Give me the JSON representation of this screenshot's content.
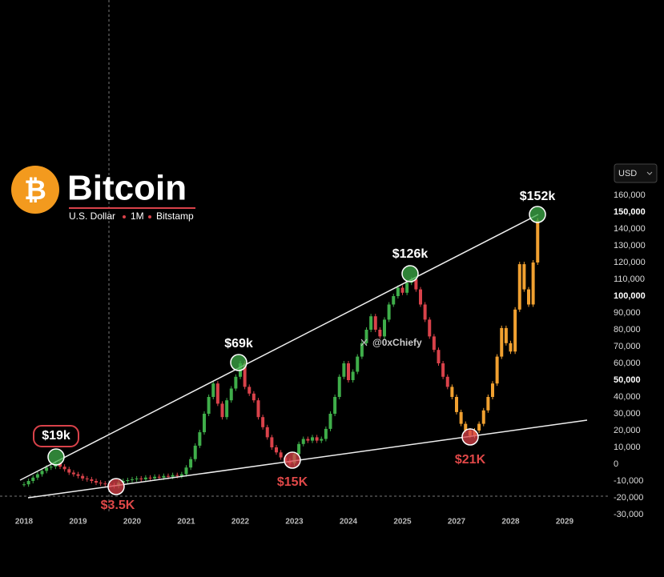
{
  "chart_data": {
    "type": "candlestick",
    "title": "Bitcoin",
    "source": [
      "U.S. Dollar",
      "1M",
      "Bitstamp"
    ],
    "currency": "USD",
    "watermark": "@0xChiefy",
    "categories": [
      "2018",
      null,
      null,
      null,
      null,
      null,
      null,
      null,
      null,
      null,
      null,
      null,
      "2019",
      null,
      null,
      null,
      null,
      null,
      null,
      null,
      null,
      null,
      null,
      null,
      "2020",
      null,
      null,
      null,
      null,
      null,
      null,
      null,
      null,
      null,
      null,
      null,
      "2021",
      null,
      null,
      null,
      null,
      null,
      null,
      null,
      null,
      null,
      null,
      null,
      "2022",
      null,
      null,
      null,
      null,
      null,
      null,
      null,
      null,
      null,
      null,
      null,
      "2023",
      null,
      null,
      null,
      null,
      null,
      null,
      null,
      null,
      null,
      null,
      null,
      "2024",
      null,
      null,
      null,
      null,
      null,
      null,
      null,
      null,
      null,
      null,
      null,
      "2025",
      null,
      null,
      null,
      null,
      null,
      null,
      null,
      null,
      null,
      null,
      null,
      "2027",
      null,
      null,
      null,
      null,
      null,
      null,
      null,
      null,
      null,
      null,
      null,
      "2028",
      null,
      null,
      null,
      null,
      null,
      null,
      null,
      null,
      null,
      null,
      null,
      "2029"
    ],
    "values": [
      -12000,
      -10000,
      -8000,
      -6000,
      -4000,
      -2000,
      -1500,
      500,
      -1500,
      -3000,
      -5000,
      -6000,
      -7000,
      -8500,
      -9000,
      -10000,
      -11000,
      -11500,
      -12000,
      -12500,
      -13000,
      -11000,
      -10000,
      -9500,
      -9000,
      -8500,
      -9000,
      -8000,
      -8500,
      -7500,
      -8000,
      -7000,
      -7500,
      -6500,
      -7000,
      -6000,
      -2000,
      3000,
      11000,
      19000,
      30000,
      40000,
      48000,
      36000,
      28000,
      38000,
      45000,
      52000,
      60000,
      46000,
      42000,
      38000,
      28000,
      22000,
      16000,
      10000,
      7000,
      4000,
      2000,
      500,
      6000,
      12000,
      15000,
      14000,
      16000,
      14000,
      15000,
      21000,
      30000,
      40000,
      52000,
      60000,
      50000,
      55000,
      64000,
      72000,
      80000,
      88000,
      80000,
      76000,
      86000,
      95000,
      100000,
      105000,
      102000,
      108000,
      110000,
      104000,
      95000,
      86000,
      76000,
      68000,
      60000,
      52000,
      46000,
      40000,
      31000,
      24000,
      20000,
      17000,
      20000,
      24000,
      32000,
      40000,
      48000,
      64000,
      81000,
      72000,
      67000,
      92000,
      119000,
      104000,
      95000,
      120000,
      145000,
      null,
      null,
      null,
      null,
      null,
      null
    ],
    "up_color": "#3fae4a",
    "down_color": "#d9424a",
    "projection_color": "#f0a030",
    "projection_start": 95,
    "ylim": [
      -35000,
      175000
    ],
    "yticks": [
      {
        "value": -30000,
        "label": "-30,000"
      },
      {
        "value": -20000,
        "label": "-20,000"
      },
      {
        "value": -10000,
        "label": "-10,000"
      },
      0,
      {
        "value": 10000,
        "label": "10,000"
      },
      {
        "value": 20000,
        "label": "20,000"
      },
      {
        "value": 30000,
        "label": "30,000"
      },
      {
        "value": 40000,
        "label": "40,000"
      },
      {
        "value": 50000,
        "label": "50,000"
      },
      {
        "value": 60000,
        "label": "60,000"
      },
      {
        "value": 70000,
        "label": "70,000"
      },
      {
        "value": 80000,
        "label": "80,000"
      },
      {
        "value": 90000,
        "label": "90,000"
      },
      {
        "value": 100000,
        "label": "100,000"
      },
      {
        "value": 110000,
        "label": "110,000"
      },
      {
        "value": 120000,
        "label": "120,000"
      },
      {
        "value": 130000,
        "label": "130,000"
      },
      {
        "value": 140000,
        "label": "140,000"
      },
      {
        "value": 150000,
        "label": "150,000"
      },
      {
        "value": 160000,
        "label": "160,000"
      }
    ],
    "annotations": [
      "$19k",
      "$3.5K",
      "$69k",
      "$15K",
      "$126k",
      "$21K",
      "$152k"
    ]
  }
}
